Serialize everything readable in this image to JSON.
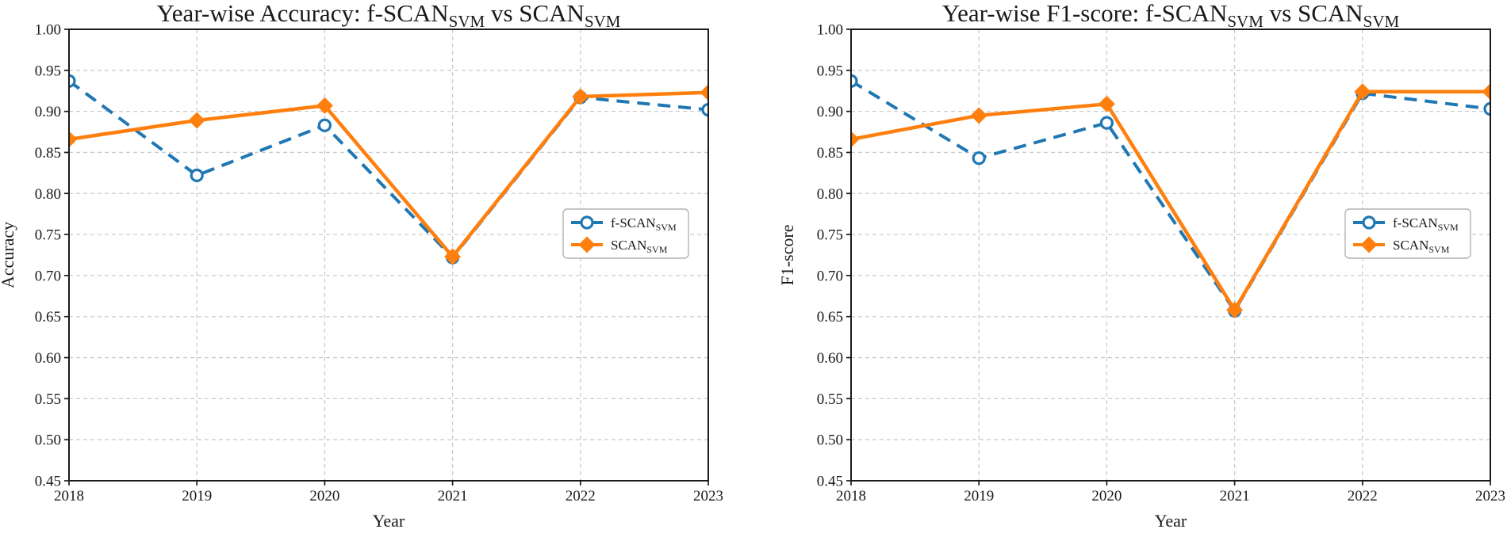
{
  "figure": {
    "background": "#ffffff",
    "text_color": "#1a1a1a",
    "grid_color": "#cccccc",
    "series_colors": {
      "f_scan": "#1f77b4",
      "scan": "#ff7f0e"
    }
  },
  "chart_data": [
    {
      "type": "line",
      "title": "Year-wise Accuracy: f-SCAN_SVM vs SCAN_SVM",
      "title_parts": [
        {
          "text": "Year-wise Accuracy: f-SCAN"
        },
        {
          "text": "SVM",
          "sub": true
        },
        {
          "text": " vs SCAN"
        },
        {
          "text": "SVM",
          "sub": true
        }
      ],
      "xlabel": "Year",
      "ylabel": "Accuracy",
      "x": [
        "2018",
        "2019",
        "2020",
        "2021",
        "2022",
        "2023"
      ],
      "ylim": [
        0.45,
        1.0
      ],
      "ytick_step": 0.05,
      "grid": true,
      "legend_position": "center-right",
      "series": [
        {
          "name": "f-SCAN_SVM",
          "name_parts": [
            {
              "text": "f-SCAN"
            },
            {
              "text": "SVM",
              "sub": true
            }
          ],
          "color": "#1f77b4",
          "line_style": "dashed",
          "marker": "open-circle",
          "values": [
            0.937,
            0.822,
            0.883,
            0.722,
            0.917,
            0.902
          ]
        },
        {
          "name": "SCAN_SVM",
          "name_parts": [
            {
              "text": "SCAN"
            },
            {
              "text": "SVM",
              "sub": true
            }
          ],
          "color": "#ff7f0e",
          "line_style": "solid",
          "marker": "diamond",
          "values": [
            0.866,
            0.889,
            0.907,
            0.723,
            0.918,
            0.923
          ]
        }
      ]
    },
    {
      "type": "line",
      "title": "Year-wise F1-score: f-SCAN_SVM vs SCAN_SVM",
      "title_parts": [
        {
          "text": "Year-wise F1-score: f-SCAN"
        },
        {
          "text": "SVM",
          "sub": true
        },
        {
          "text": " vs SCAN"
        },
        {
          "text": "SVM",
          "sub": true
        }
      ],
      "xlabel": "Year",
      "ylabel": "F1-score",
      "x": [
        "2018",
        "2019",
        "2020",
        "2021",
        "2022",
        "2023"
      ],
      "ylim": [
        0.45,
        1.0
      ],
      "ytick_step": 0.05,
      "grid": true,
      "legend_position": "center-right",
      "series": [
        {
          "name": "f-SCAN_SVM",
          "name_parts": [
            {
              "text": "f-SCAN"
            },
            {
              "text": "SVM",
              "sub": true
            }
          ],
          "color": "#1f77b4",
          "line_style": "dashed",
          "marker": "open-circle",
          "values": [
            0.937,
            0.843,
            0.886,
            0.657,
            0.922,
            0.903
          ]
        },
        {
          "name": "SCAN_SVM",
          "name_parts": [
            {
              "text": "SCAN"
            },
            {
              "text": "SVM",
              "sub": true
            }
          ],
          "color": "#ff7f0e",
          "line_style": "solid",
          "marker": "diamond",
          "values": [
            0.866,
            0.895,
            0.909,
            0.658,
            0.924,
            0.924
          ]
        }
      ]
    }
  ]
}
